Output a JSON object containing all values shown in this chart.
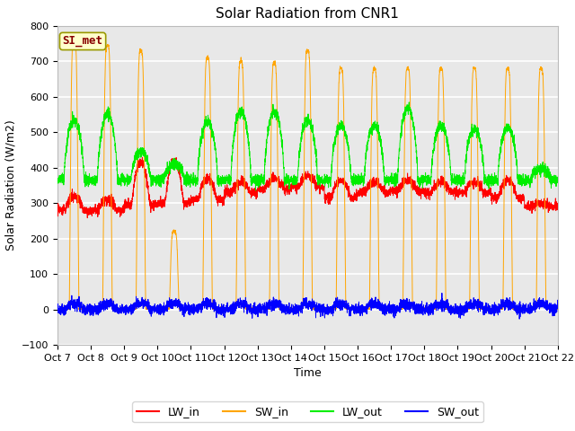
{
  "title": "Solar Radiation from CNR1",
  "xlabel": "Time",
  "ylabel": "Solar Radiation (W/m2)",
  "ylim": [
    -100,
    800
  ],
  "yticks": [
    -100,
    0,
    100,
    200,
    300,
    400,
    500,
    600,
    700,
    800
  ],
  "x_tick_labels": [
    "Oct 7",
    "Oct 8",
    "Oct 9",
    "Oct 10",
    "Oct 11",
    "Oct 12",
    "Oct 13",
    "Oct 14",
    "Oct 15",
    "Oct 16",
    "Oct 17",
    "Oct 18",
    "Oct 19",
    "Oct 20",
    "Oct 21",
    "Oct 22"
  ],
  "legend_labels": [
    "LW_in",
    "SW_in",
    "LW_out",
    "SW_out"
  ],
  "legend_colors": [
    "#ff0000",
    "#ffa500",
    "#00ee00",
    "#0000ff"
  ],
  "annotation_text": "SI_met",
  "annotation_bg": "#ffffcc",
  "annotation_border": "#999900",
  "annotation_text_color": "#880000",
  "plot_bg_color": "#e8e8e8",
  "fig_bg_color": "#ffffff",
  "grid_color": "#ffffff",
  "title_fontsize": 11,
  "label_fontsize": 9,
  "tick_fontsize": 8,
  "n_days": 15,
  "ppd": 288,
  "sw_peaks": [
    760,
    745,
    730,
    220,
    710,
    700,
    695,
    730,
    680,
    680,
    680,
    680,
    680,
    680,
    680
  ],
  "lw_out_night": 365,
  "lw_out_day_peaks": [
    535,
    550,
    445,
    410,
    530,
    560,
    560,
    535,
    520,
    520,
    570,
    520,
    510,
    515,
    395
  ],
  "lw_in_vals": [
    280,
    280,
    295,
    300,
    310,
    330,
    340,
    345,
    315,
    330,
    335,
    330,
    330,
    315,
    290
  ],
  "lw_in_day_extra": [
    40,
    30,
    120,
    120,
    60,
    30,
    30,
    30,
    50,
    30,
    30,
    30,
    30,
    50,
    10
  ]
}
